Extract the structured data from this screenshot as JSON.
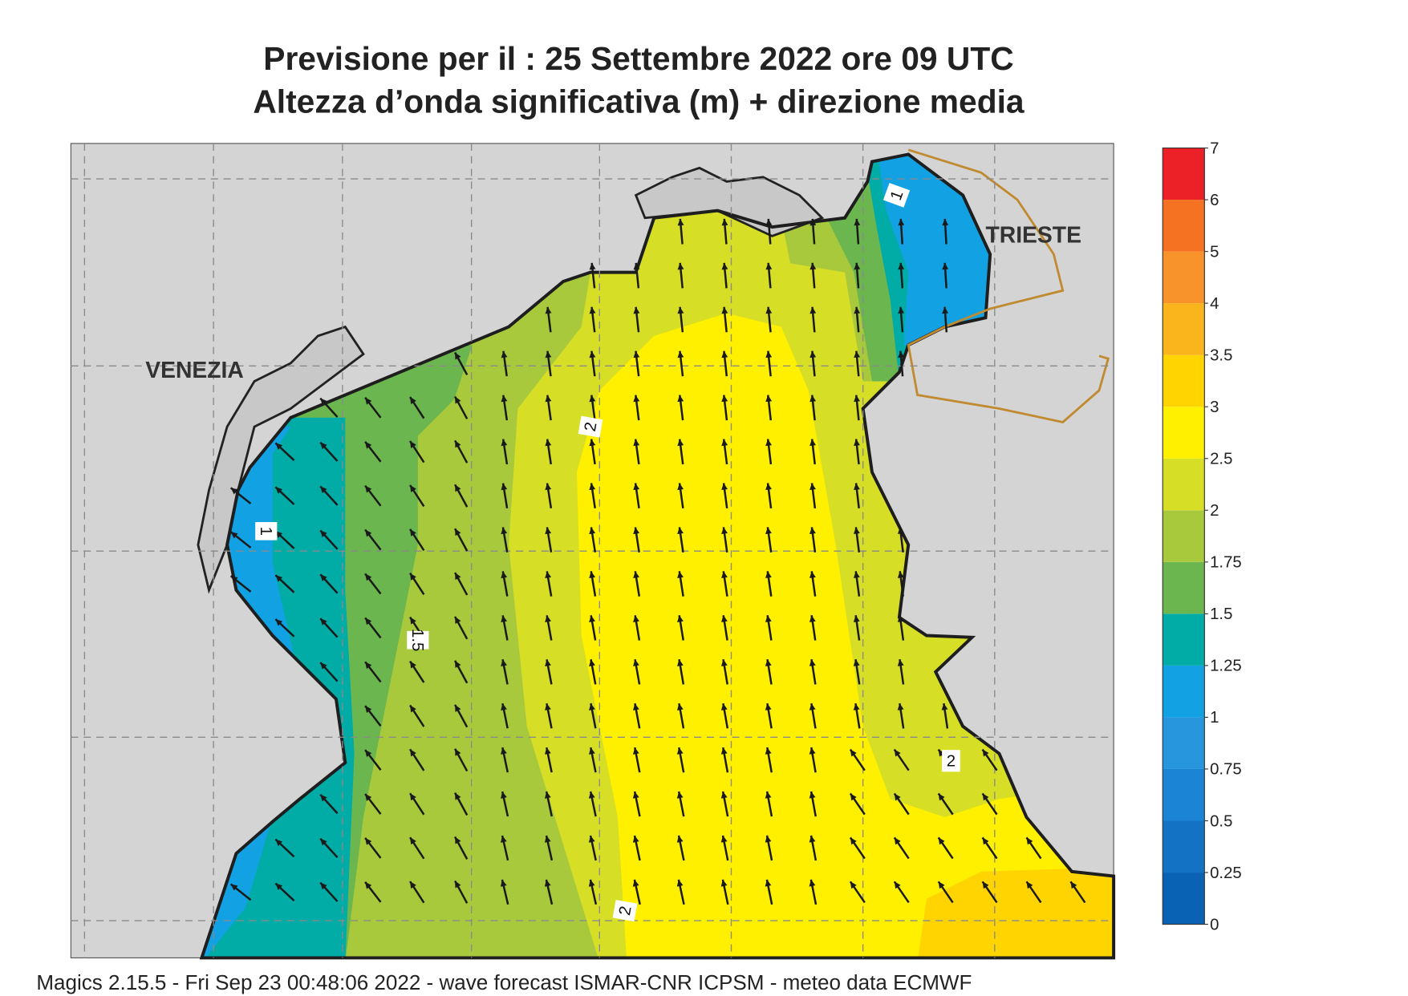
{
  "header": {
    "title": "Previsione per il  :  25 Settembre 2022   ore 09 UTC",
    "subtitle": "Altezza d’onda significativa (m) + direzione media"
  },
  "map": {
    "places": [
      "VENEZIA",
      "TRIESTE"
    ],
    "contour_labels": [
      1,
      1,
      2,
      1.5,
      2,
      2
    ]
  },
  "legend": {
    "levels": [
      0,
      0.25,
      0.5,
      0.75,
      1,
      1.25,
      1.5,
      1.75,
      2,
      2.5,
      3,
      3.5,
      4,
      5,
      6,
      7
    ],
    "colors": [
      "#0a62b4",
      "#1472c4",
      "#1c84d4",
      "#2896dc",
      "#12a2e4",
      "#00aca5",
      "#6cb64f",
      "#a9c93c",
      "#d6de26",
      "#fff000",
      "#ffd400",
      "#fbb51c",
      "#f7932a",
      "#f47221",
      "#ec2027",
      "#ec1763"
    ]
  },
  "footer": "Magics 2.15.5 - Fri Sep 23 00:48:06 2022 - wave forecast  ISMAR-CNR  ICPSM - meteo data    ECMWF"
}
